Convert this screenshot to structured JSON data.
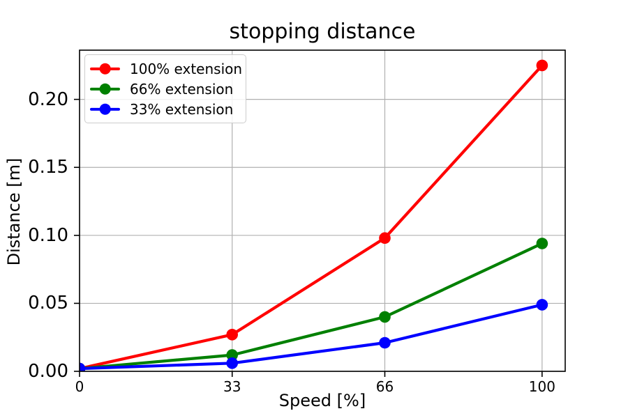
{
  "figure": {
    "background": "#ffffff",
    "text_color": "#000000"
  },
  "chart_data": {
    "type": "line",
    "title": "stopping distance",
    "xlabel": "Speed [%]",
    "ylabel": "Distance [m]",
    "x": [
      0,
      33,
      66,
      100
    ],
    "series": [
      {
        "name": "100% extension",
        "color": "#ff0000",
        "values": [
          0.002,
          0.027,
          0.098,
          0.225
        ]
      },
      {
        "name": "66% extension",
        "color": "#008000",
        "values": [
          0.002,
          0.012,
          0.04,
          0.094
        ]
      },
      {
        "name": "33% extension",
        "color": "#0000ff",
        "values": [
          0.002,
          0.006,
          0.021,
          0.049
        ]
      }
    ],
    "xlim": [
      0,
      105
    ],
    "ylim": [
      0,
      0.2362
    ],
    "xticks": {
      "values": [
        0,
        33,
        66,
        100
      ],
      "labels": [
        "0",
        "33",
        "66",
        "100"
      ]
    },
    "yticks": {
      "values": [
        0,
        0.05,
        0.1,
        0.15,
        0.2
      ],
      "labels": [
        "0.00",
        "0.05",
        "0.10",
        "0.15",
        "0.20"
      ]
    },
    "grid": true,
    "grid_color": "#b0b0b0",
    "spine_color": "#000000",
    "legend": {
      "position": "upper-left",
      "border_color": "#cccccc"
    }
  }
}
